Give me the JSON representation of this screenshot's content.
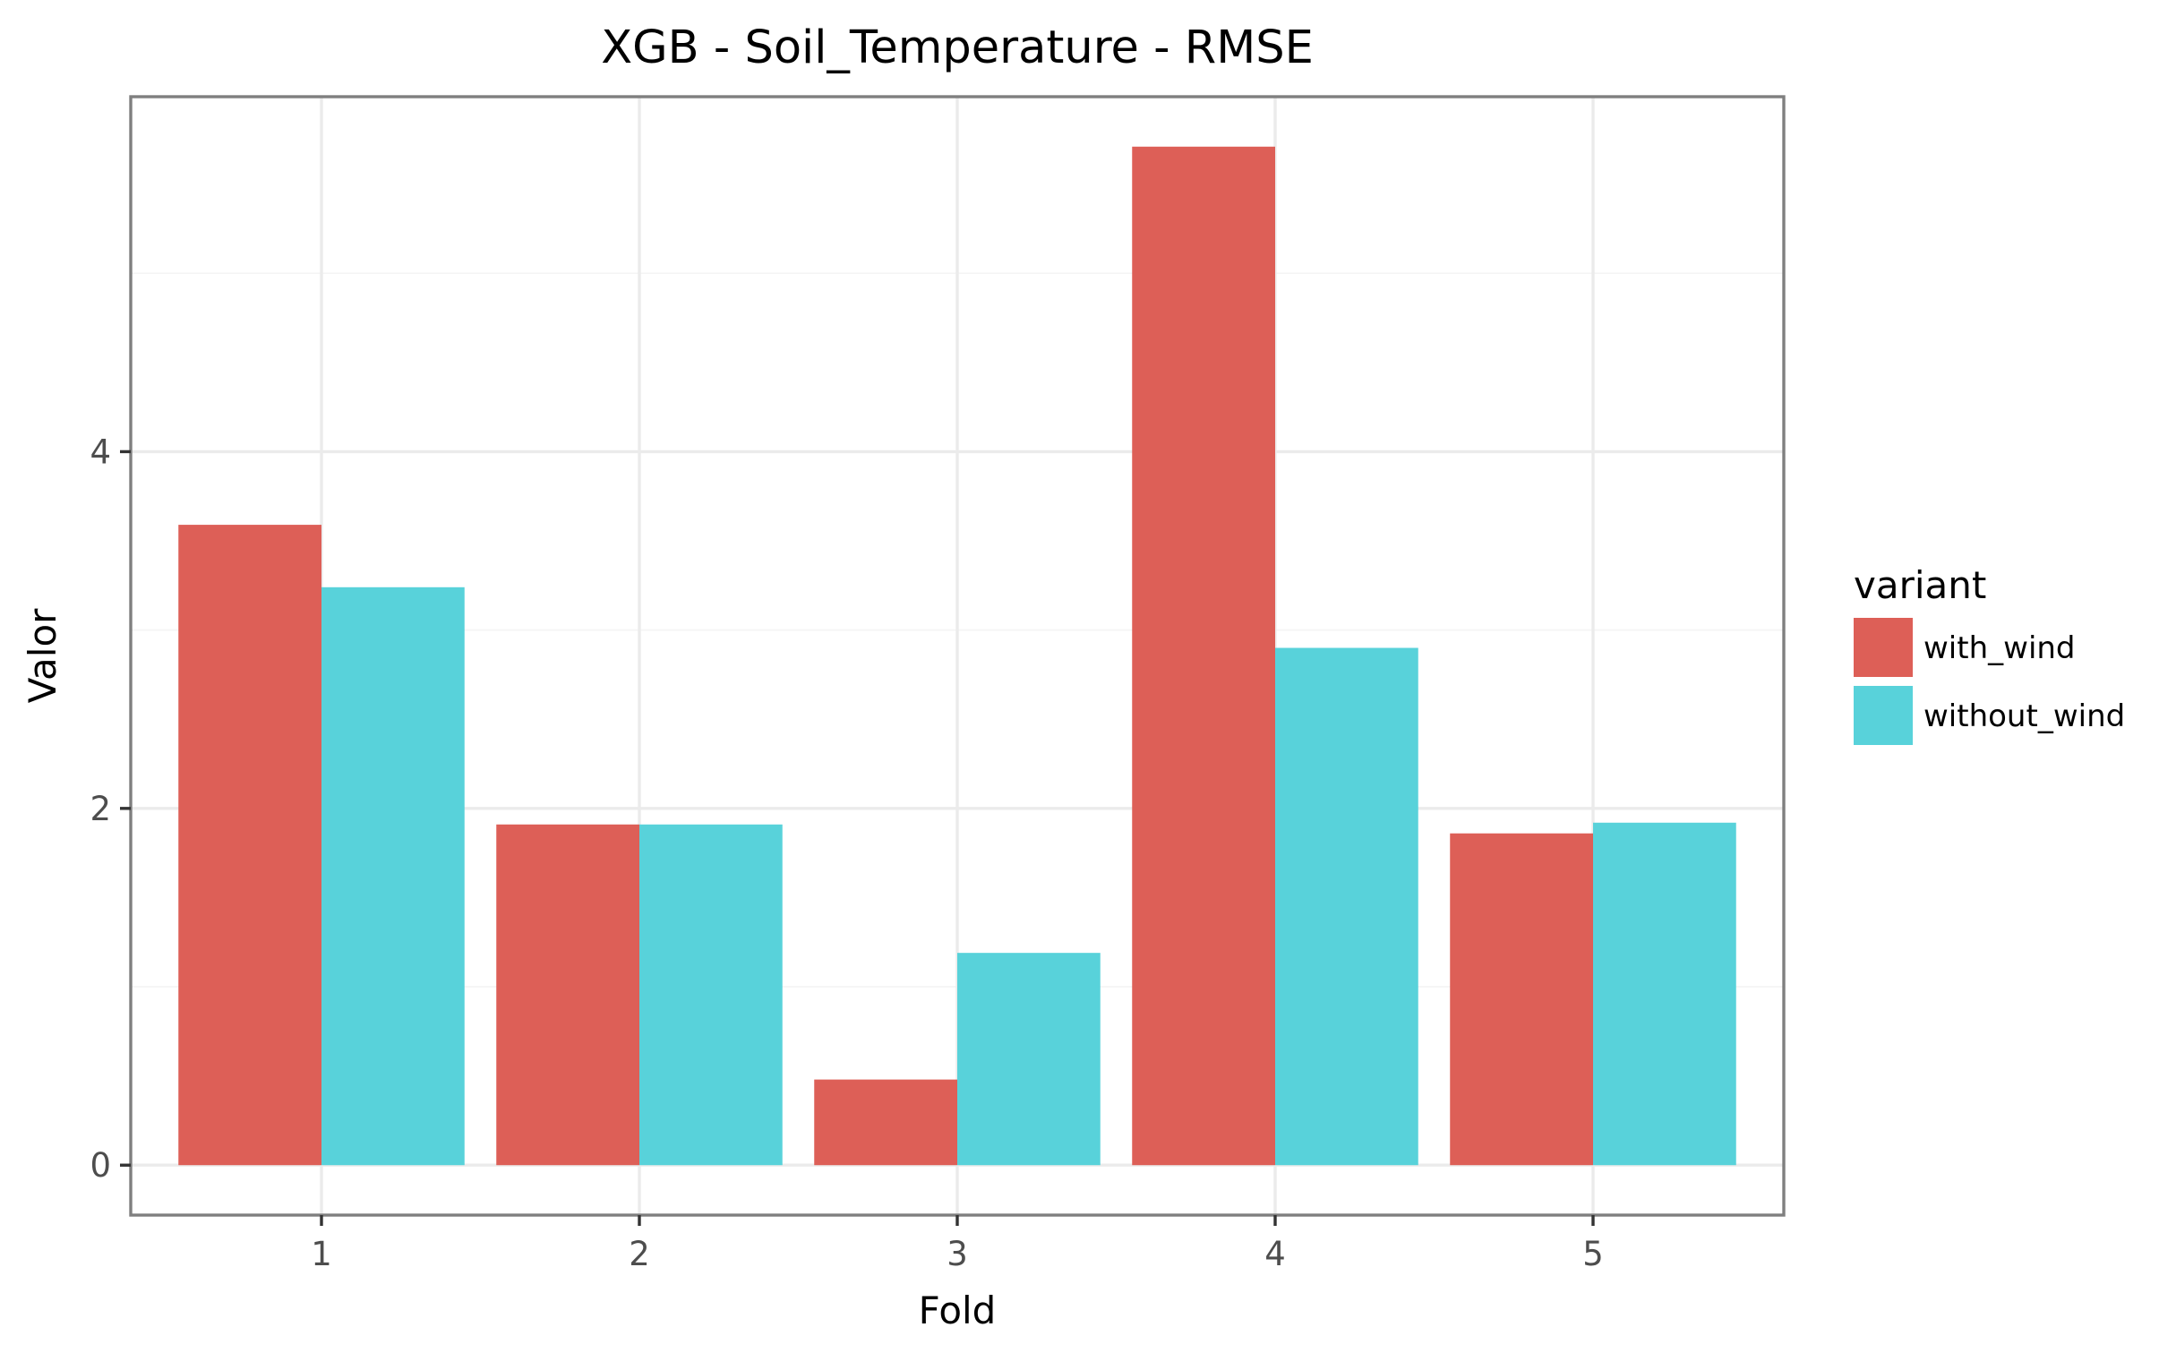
{
  "chart_data": {
    "type": "bar",
    "title": "XGB - Soil_Temperature - RMSE",
    "xlabel": "Fold",
    "ylabel": "Valor",
    "categories": [
      "1",
      "2",
      "3",
      "4",
      "5"
    ],
    "series": [
      {
        "name": "with_wind",
        "color": "#dd5f57",
        "values": [
          3.59,
          1.91,
          0.48,
          5.71,
          1.86
        ]
      },
      {
        "name": "without_wind",
        "color": "#58d2da",
        "values": [
          3.24,
          1.91,
          1.19,
          2.9,
          1.92
        ]
      }
    ],
    "yticks": [
      0,
      2,
      4
    ],
    "ylim": [
      -0.28,
      5.99
    ],
    "grid": true,
    "legend": {
      "title": "variant",
      "position": "right"
    }
  }
}
